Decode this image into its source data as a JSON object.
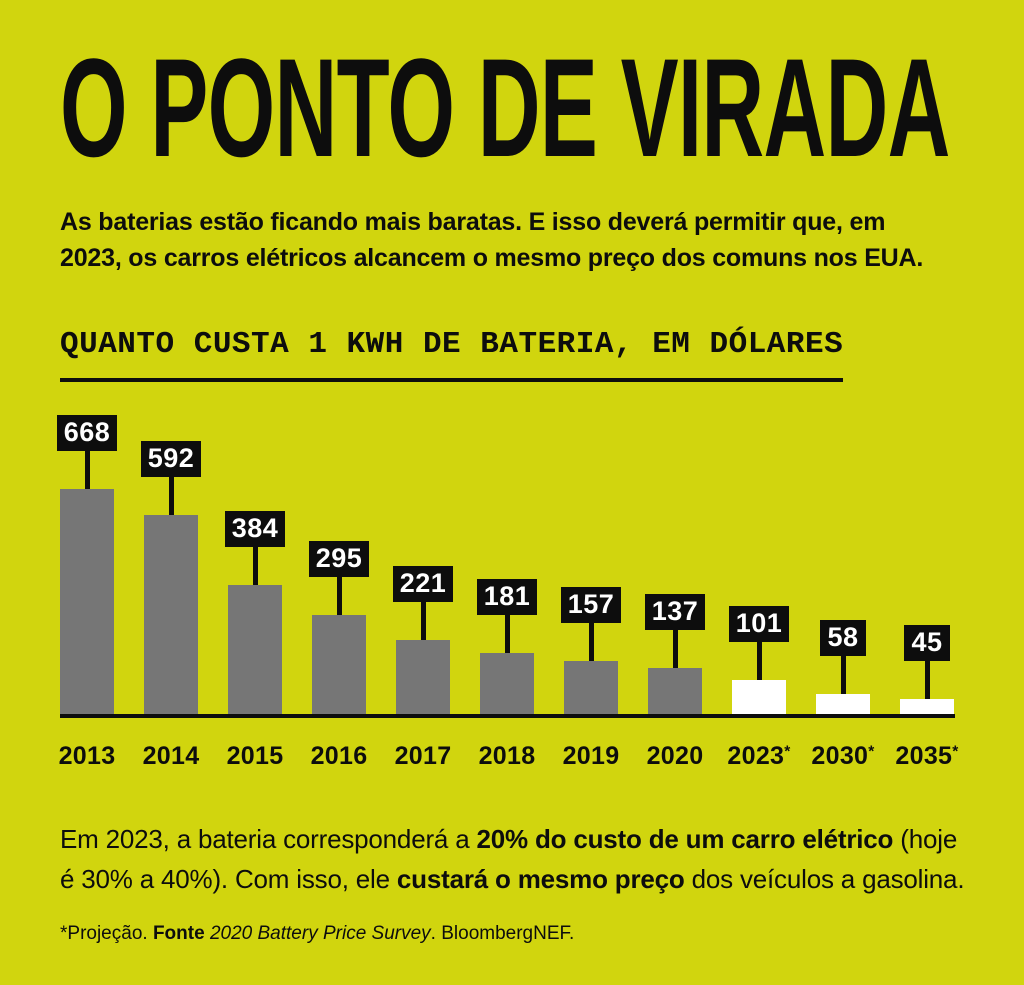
{
  "title": "O PONTO DE VIRADA",
  "subtitle_lines": [
    "As baterias estão ficando mais baratas. E isso deverá permitir que, em",
    "2023, os carros elétricos alcancem o mesmo preço dos comuns nos EUA."
  ],
  "chart_data": {
    "type": "bar",
    "title": "QUANTO CUSTA 1 KWH DE BATERIA, EM DÓLARES",
    "categories": [
      "2013",
      "2014",
      "2015",
      "2016",
      "2017",
      "2018",
      "2019",
      "2020",
      "2023*",
      "2030*",
      "2035*"
    ],
    "values": [
      668,
      592,
      384,
      295,
      221,
      181,
      157,
      137,
      101,
      58,
      45
    ],
    "projected": [
      false,
      false,
      false,
      false,
      false,
      false,
      false,
      false,
      true,
      true,
      true
    ],
    "value_labels_shown": true,
    "ylim": [
      0,
      700
    ],
    "grid": false,
    "legend": null,
    "colors": {
      "bar_actual": "#767676",
      "bar_projected": "#ffffff",
      "value_badge_bg": "#0d0d0d",
      "value_badge_text": "#ffffff",
      "axis": "#0d0d0d"
    }
  },
  "footer_lines": [
    [
      {
        "text": "Em 2023, a bateria corresponderá a "
      },
      {
        "text": "20% do custo de um carro elétrico",
        "bold": true
      },
      {
        "text": " (hoje"
      }
    ],
    [
      {
        "text": "é 30% a 40%). Com isso, ele "
      },
      {
        "text": "custará o mesmo preço",
        "bold": true
      },
      {
        "text": " dos veículos a gasolina."
      }
    ]
  ],
  "source_segments": [
    {
      "text": "*Projeção. "
    },
    {
      "text": "Fonte",
      "bold": true
    },
    {
      "text": " "
    },
    {
      "text": "2020 Battery Price Survey",
      "italic": true
    },
    {
      "text": ". BloombergNEF."
    }
  ],
  "colors": {
    "background": "#d1d50e",
    "text": "#0d0d0d"
  }
}
